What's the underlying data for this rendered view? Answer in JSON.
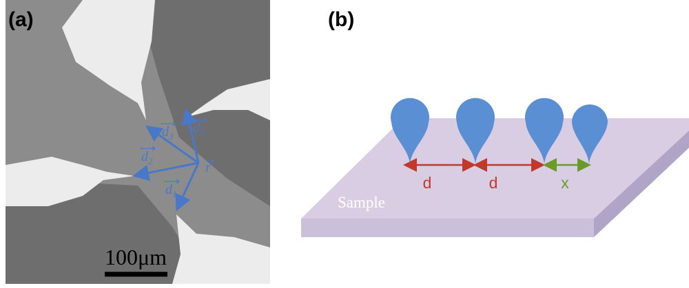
{
  "panel_a": {
    "label": "(a)",
    "vectors": [
      {
        "symbol": "d",
        "subscript": "1"
      },
      {
        "symbol": "d",
        "subscript": "2"
      },
      {
        "symbol": "d",
        "subscript": "3"
      },
      {
        "symbol": "d",
        "subscript": "4"
      }
    ],
    "origin": "r",
    "scale_bar": "100μm"
  },
  "panel_b": {
    "label": "(b)",
    "sample": "Sample",
    "distances": [
      "d",
      "d",
      "x"
    ]
  }
}
